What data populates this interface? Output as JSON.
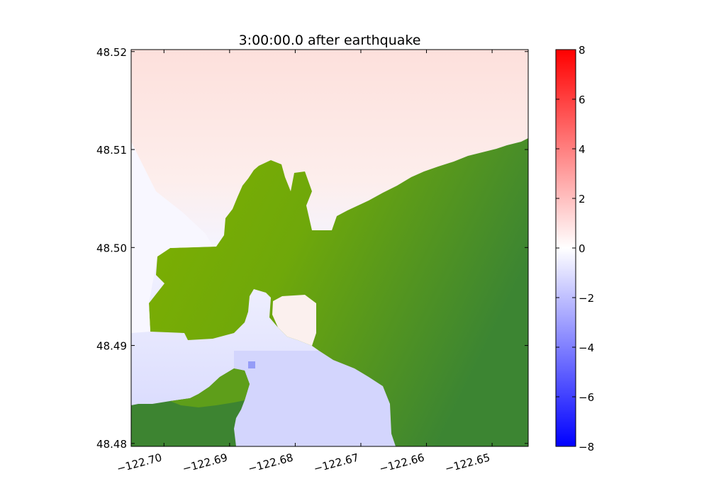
{
  "chart_data": {
    "type": "heatmap",
    "title": "3:00:00.0 after earthquake",
    "xlabel": "",
    "ylabel": "",
    "xlim": [
      -122.705,
      -122.6445
    ],
    "ylim": [
      48.4797,
      48.5202
    ],
    "x_ticks": [
      -122.7,
      -122.69,
      -122.68,
      -122.67,
      -122.66,
      -122.65
    ],
    "x_tick_labels": [
      "−122.70",
      "−122.69",
      "−122.68",
      "−122.67",
      "−122.66",
      "−122.65"
    ],
    "y_ticks": [
      48.48,
      48.49,
      48.5,
      48.51,
      48.52
    ],
    "y_tick_labels": [
      "48.48",
      "48.49",
      "48.50",
      "48.51",
      "48.52"
    ],
    "grid": false,
    "colorbar": {
      "range": [
        -8,
        8
      ],
      "ticks": [
        8,
        6,
        4,
        2,
        0,
        -2,
        -4,
        -6,
        -8
      ],
      "tick_labels": [
        "8",
        "6",
        "4",
        "2",
        "0",
        "−2",
        "−4",
        "−6",
        "−8"
      ],
      "colormap": [
        "#0000ff",
        "#ffffff",
        "#ff0000"
      ],
      "placement": "right"
    },
    "colors": {
      "land_light": "#7fb000",
      "land_dark": "#3c8532",
      "water_north": "#fde0dc",
      "water_south": "#d5d7fd"
    }
  }
}
